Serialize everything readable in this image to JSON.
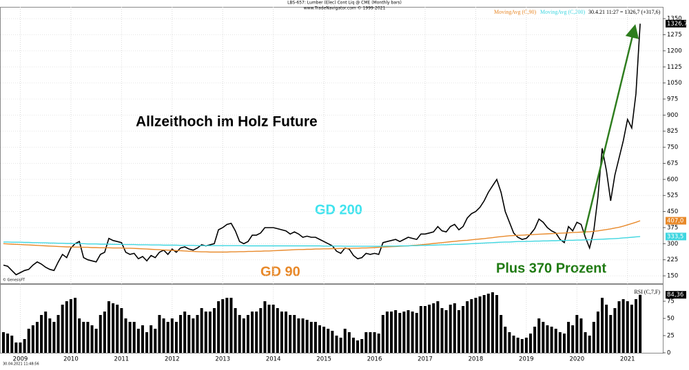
{
  "chart_data": [
    {
      "type": "line",
      "title": "LBS-657: Lumber (Elec) Cont Liq @ CME  (Monthly bars)",
      "subtitle": "www.TradeNavigator.com © 1999-2021",
      "info": "30.4.21 11:27 = 1326,7 (+317,6)",
      "source": "© GenesisFT",
      "annotations": [
        "Allzeithoch im Holz Future",
        "GD 200",
        "GD 90",
        "Plus 370 Prozent"
      ],
      "ylim": [
        115,
        1405
      ],
      "yticks": [
        150,
        225,
        300,
        375,
        450,
        525,
        600,
        675,
        750,
        825,
        900,
        975,
        1050,
        1125,
        1200,
        1275,
        1350
      ],
      "grid": true,
      "series": [
        {
          "color": "#000000",
          "value_label": "1326,7",
          "values": [
            200,
            195,
            175,
            155,
            165,
            175,
            180,
            200,
            215,
            205,
            190,
            180,
            175,
            215,
            250,
            235,
            280,
            300,
            310,
            235,
            225,
            220,
            215,
            250,
            260,
            325,
            315,
            310,
            305,
            260,
            250,
            255,
            230,
            240,
            220,
            245,
            235,
            260,
            270,
            250,
            275,
            260,
            280,
            285,
            275,
            270,
            280,
            295,
            290,
            295,
            300,
            365,
            375,
            390,
            395,
            360,
            310,
            300,
            310,
            340,
            340,
            350,
            375,
            375,
            375,
            370,
            365,
            360,
            345,
            355,
            345,
            330,
            335,
            330,
            330,
            320,
            310,
            300,
            290,
            265,
            255,
            280,
            275,
            245,
            230,
            235,
            255,
            250,
            255,
            250,
            305,
            310,
            315,
            320,
            310,
            320,
            330,
            325,
            320,
            345,
            345,
            350,
            355,
            380,
            360,
            355,
            380,
            390,
            365,
            380,
            420,
            440,
            450,
            470,
            500,
            540,
            570,
            600,
            540,
            450,
            400,
            350,
            330,
            320,
            325,
            345,
            370,
            415,
            400,
            375,
            360,
            350,
            320,
            305,
            380,
            360,
            400,
            390,
            330,
            280,
            360,
            520,
            745,
            640,
            500,
            620,
            700,
            780,
            880,
            840,
            1000,
            1326.7
          ]
        },
        {
          "name": "MovingAvg (C,90)",
          "color": "#e8892a",
          "value_label": "407,0",
          "values": [
            300,
            299,
            298,
            297,
            296,
            295,
            294,
            293,
            292,
            291,
            290,
            289,
            288,
            287,
            286,
            285,
            285,
            284,
            284,
            283,
            283,
            282,
            282,
            281,
            281,
            281,
            280,
            280,
            280,
            279,
            279,
            278,
            277,
            276,
            275,
            274,
            273,
            272,
            271,
            270,
            269,
            268,
            267,
            266,
            265,
            264,
            263,
            262,
            262,
            261,
            261,
            261,
            261,
            261,
            262,
            262,
            263,
            263,
            264,
            264,
            265,
            265,
            266,
            266,
            267,
            268,
            269,
            270,
            271,
            272,
            273,
            273,
            274,
            274,
            275,
            275,
            276,
            276,
            277,
            277,
            278,
            278,
            278,
            279,
            279,
            280,
            280,
            281,
            282,
            283,
            284,
            285,
            286,
            287,
            288,
            289,
            290,
            292,
            293,
            295,
            297,
            299,
            301,
            303,
            305,
            307,
            309,
            311,
            313,
            315,
            316,
            318,
            320,
            322,
            324,
            326,
            328,
            331,
            333,
            335,
            337,
            338,
            339,
            340,
            341,
            342,
            343,
            344,
            345,
            346,
            347,
            348,
            349,
            350,
            351,
            352,
            353,
            354,
            355,
            356,
            358,
            360,
            363,
            366,
            369,
            373,
            377,
            382,
            388,
            394,
            400,
            407
          ]
        },
        {
          "name": "MovingAvg (C,200)",
          "color": "#3fd6e0",
          "value_label": "333,5",
          "values": [
            308,
            308,
            307,
            307,
            307,
            306,
            306,
            305,
            305,
            304,
            304,
            303,
            303,
            302,
            302,
            301,
            301,
            300,
            300,
            300,
            299,
            299,
            299,
            298,
            298,
            298,
            297,
            297,
            297,
            296,
            296,
            296,
            295,
            295,
            295,
            294,
            294,
            294,
            293,
            293,
            293,
            293,
            292,
            292,
            292,
            292,
            291,
            291,
            291,
            291,
            291,
            291,
            291,
            291,
            291,
            291,
            291,
            291,
            290,
            290,
            290,
            290,
            290,
            290,
            290,
            290,
            290,
            290,
            290,
            290,
            290,
            290,
            290,
            290,
            290,
            290,
            289,
            289,
            289,
            289,
            289,
            288,
            288,
            288,
            288,
            288,
            288,
            288,
            288,
            288,
            288,
            289,
            289,
            289,
            290,
            290,
            290,
            291,
            291,
            292,
            292,
            293,
            293,
            294,
            295,
            295,
            296,
            297,
            297,
            298,
            299,
            300,
            301,
            302,
            303,
            304,
            305,
            306,
            307,
            308,
            308,
            309,
            310,
            310,
            311,
            311,
            312,
            312,
            313,
            313,
            314,
            314,
            315,
            315,
            316,
            316,
            317,
            317,
            318,
            318,
            319,
            320,
            321,
            322,
            323,
            324,
            325,
            327,
            328,
            330,
            332,
            333.5
          ]
        }
      ]
    },
    {
      "type": "bar",
      "title": "RSI (C,7,F)",
      "timestamp": "30.04.2021 11:48:56",
      "color": "#000000",
      "value_label": "84,36",
      "ylim": [
        0,
        100
      ],
      "yticks": [
        0,
        25,
        50,
        75
      ],
      "categories": [
        null,
        null,
        null,
        null,
        "2009",
        null,
        null,
        null,
        null,
        null,
        null,
        null,
        null,
        null,
        null,
        null,
        "2010",
        null,
        null,
        null,
        null,
        null,
        null,
        null,
        null,
        null,
        null,
        null,
        "2011",
        null,
        null,
        null,
        null,
        null,
        null,
        null,
        null,
        null,
        null,
        null,
        "2012",
        null,
        null,
        null,
        null,
        null,
        null,
        null,
        null,
        null,
        null,
        null,
        "2013",
        null,
        null,
        null,
        null,
        null,
        null,
        null,
        null,
        null,
        null,
        null,
        "2014",
        null,
        null,
        null,
        null,
        null,
        null,
        null,
        null,
        null,
        null,
        null,
        "2015",
        null,
        null,
        null,
        null,
        null,
        null,
        null,
        null,
        null,
        null,
        null,
        "2016",
        null,
        null,
        null,
        null,
        null,
        null,
        null,
        null,
        null,
        null,
        null,
        "2017",
        null,
        null,
        null,
        null,
        null,
        null,
        null,
        null,
        null,
        null,
        null,
        "2018",
        null,
        null,
        null,
        null,
        null,
        null,
        null,
        null,
        null,
        null,
        null,
        "2019",
        null,
        null,
        null,
        null,
        null,
        null,
        null,
        null,
        null,
        null,
        null,
        "2020",
        null,
        null,
        null,
        null,
        null,
        null,
        null,
        null,
        null,
        null,
        null,
        "2021",
        null,
        null,
        null
      ],
      "values": [
        30,
        28,
        25,
        15,
        15,
        20,
        35,
        40,
        45,
        55,
        60,
        50,
        45,
        55,
        70,
        75,
        78,
        80,
        50,
        45,
        45,
        40,
        35,
        55,
        60,
        75,
        72,
        70,
        65,
        50,
        45,
        45,
        35,
        40,
        30,
        40,
        35,
        55,
        50,
        45,
        50,
        45,
        55,
        60,
        55,
        50,
        55,
        65,
        60,
        60,
        65,
        75,
        78,
        80,
        80,
        65,
        55,
        50,
        55,
        60,
        60,
        65,
        75,
        70,
        70,
        65,
        60,
        60,
        55,
        55,
        50,
        50,
        48,
        45,
        45,
        40,
        38,
        35,
        32,
        25,
        22,
        35,
        30,
        22,
        18,
        20,
        30,
        30,
        30,
        28,
        55,
        60,
        60,
        62,
        58,
        60,
        62,
        60,
        58,
        68,
        68,
        70,
        72,
        75,
        65,
        62,
        70,
        72,
        62,
        68,
        75,
        78,
        80,
        82,
        84,
        86,
        88,
        84,
        55,
        38,
        30,
        25,
        22,
        20,
        22,
        28,
        38,
        50,
        45,
        40,
        38,
        35,
        30,
        28,
        45,
        40,
        55,
        50,
        30,
        25,
        45,
        60,
        80,
        70,
        55,
        65,
        75,
        78,
        75,
        70,
        78,
        84.36
      ]
    }
  ]
}
